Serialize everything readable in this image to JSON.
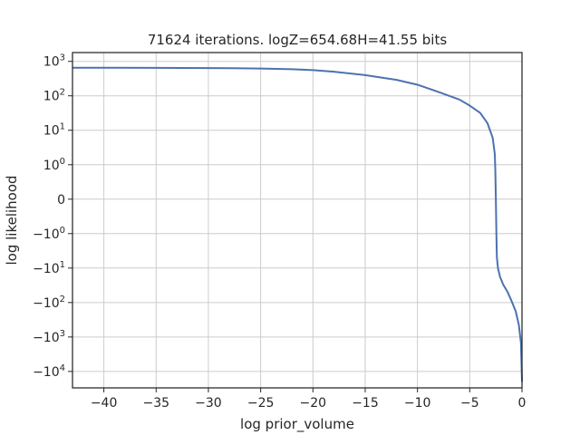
{
  "chart_data": {
    "type": "line",
    "title": "71624 iterations. logZ=654.68H=41.55 bits",
    "xlabel": "log prior_volume",
    "ylabel": "log likelihood",
    "xlim": [
      -43,
      0
    ],
    "ylim": [
      -30000,
      1800
    ],
    "yscale": "symlog",
    "grid": true,
    "x_ticks": [
      {
        "value": -40,
        "label": "−40"
      },
      {
        "value": -35,
        "label": "−35"
      },
      {
        "value": -30,
        "label": "−30"
      },
      {
        "value": -25,
        "label": "−25"
      },
      {
        "value": -20,
        "label": "−20"
      },
      {
        "value": -15,
        "label": "−15"
      },
      {
        "value": -10,
        "label": "−10"
      },
      {
        "value": -5,
        "label": "−5"
      },
      {
        "value": 0,
        "label": "0"
      }
    ],
    "y_ticks": [
      {
        "value": 1000,
        "label": "10",
        "exp": "3"
      },
      {
        "value": 100,
        "label": "10",
        "exp": "2"
      },
      {
        "value": 10,
        "label": "10",
        "exp": "1"
      },
      {
        "value": 1,
        "label": "10",
        "exp": "0"
      },
      {
        "value": 0,
        "label": "0",
        "exp": ""
      },
      {
        "value": -1,
        "label": "−10",
        "exp": "0"
      },
      {
        "value": -10,
        "label": "−10",
        "exp": "1"
      },
      {
        "value": -100,
        "label": "−10",
        "exp": "2"
      },
      {
        "value": -1000,
        "label": "−10",
        "exp": "3"
      },
      {
        "value": -10000,
        "label": "−10",
        "exp": "4"
      }
    ],
    "series": [
      {
        "color": "#4c72b0",
        "x": [
          -43,
          -40,
          -35,
          -30,
          -25,
          -22,
          -20,
          -18,
          -15,
          -12,
          -10,
          -8,
          -6,
          -5,
          -4,
          -3.3,
          -2.8,
          -2.6,
          -2.55,
          -2.5,
          -2.45,
          -2.42,
          -2.4,
          -2.3,
          -2.1,
          -1.8,
          -1.4,
          -1.0,
          -0.6,
          -0.3,
          -0.1,
          0
        ],
        "y": [
          655,
          654,
          650,
          640,
          620,
          590,
          555,
          500,
          400,
          290,
          210,
          130,
          78,
          52,
          32,
          16,
          6,
          2,
          0.8,
          0,
          -1,
          -3,
          -5,
          -10,
          -18,
          -30,
          -48,
          -90,
          -180,
          -450,
          -1500,
          -20000
        ]
      }
    ]
  }
}
